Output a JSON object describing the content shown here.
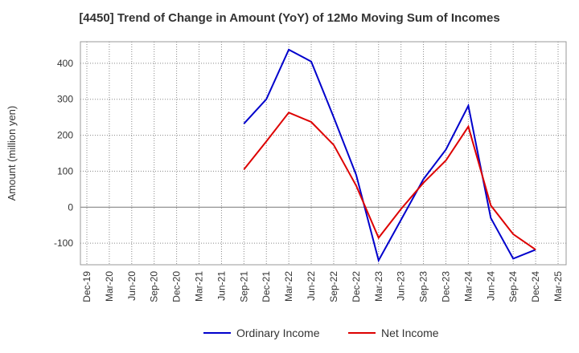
{
  "chart_data": {
    "type": "line",
    "title": "[4450]  Trend of Change in Amount (YoY) of 12Mo Moving Sum of Incomes",
    "xlabel": "",
    "ylabel": "Amount (million yen)",
    "ylim": [
      -160,
      460
    ],
    "yticks": [
      400,
      300,
      200,
      100,
      0,
      -100
    ],
    "grid": true,
    "legend_position": "bottom",
    "categories": [
      "Dec-19",
      "Mar-20",
      "Jun-20",
      "Sep-20",
      "Dec-20",
      "Mar-21",
      "Jun-21",
      "Sep-21",
      "Dec-21",
      "Mar-22",
      "Jun-22",
      "Sep-22",
      "Dec-22",
      "Mar-23",
      "Jun-23",
      "Sep-23",
      "Dec-23",
      "Mar-24",
      "Jun-24",
      "Sep-24",
      "Dec-24",
      "Mar-25"
    ],
    "series": [
      {
        "name": "Ordinary Income",
        "color": "#0000cc",
        "values": [
          null,
          null,
          null,
          null,
          null,
          null,
          null,
          232,
          300,
          438,
          405,
          250,
          90,
          -148,
          -35,
          78,
          160,
          282,
          -30,
          -143,
          -118,
          null
        ]
      },
      {
        "name": "Net Income",
        "color": "#dd0000",
        "values": [
          null,
          null,
          null,
          null,
          null,
          null,
          null,
          105,
          183,
          263,
          237,
          173,
          60,
          -85,
          -5,
          68,
          130,
          224,
          5,
          -75,
          -118,
          null
        ]
      }
    ]
  }
}
